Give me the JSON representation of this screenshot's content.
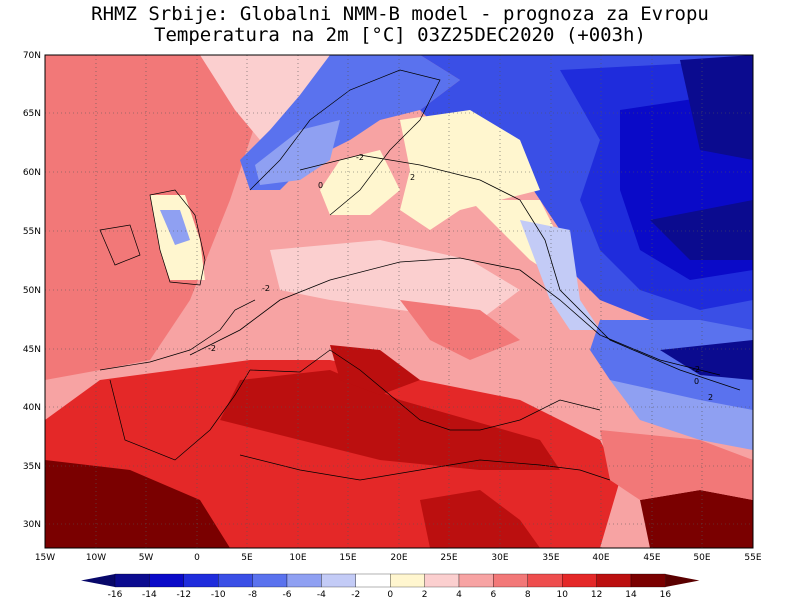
{
  "title": {
    "line1": "RHMZ Srbije: Globalni NMM-B model - prognoza za Evropu",
    "line2": "Temperatura na 2m [°C] 03Z25DEC2020 (+003h)"
  },
  "lat_ticks": [
    "70N",
    "65N",
    "60N",
    "55N",
    "50N",
    "45N",
    "40N",
    "35N",
    "30N"
  ],
  "lon_ticks": [
    "15W",
    "10W",
    "5W",
    "0",
    "5E",
    "10E",
    "15E",
    "20E",
    "25E",
    "30E",
    "35E",
    "40E",
    "45E",
    "50E",
    "55E"
  ],
  "contour_labels": [
    "-2",
    "0",
    "2"
  ],
  "colorbar": {
    "labels": [
      "-16",
      "-14",
      "-12",
      "-10",
      "-8",
      "-6",
      "-4",
      "-2",
      "0",
      "2",
      "4",
      "6",
      "8",
      "10",
      "12",
      "14",
      "16"
    ],
    "colors": [
      "#0b0b8f",
      "#0a0ac8",
      "#1f2cdc",
      "#3a4fe6",
      "#5a72ee",
      "#8fa0f2",
      "#c3cbf6",
      "#ffffff",
      "#fff6cf",
      "#fbcfcf",
      "#f7a3a3",
      "#f27878",
      "#ee4e4e",
      "#e42828",
      "#bb0f0f",
      "#7a0000"
    ],
    "under_color": "#08086a",
    "over_color": "#5a0000"
  }
}
